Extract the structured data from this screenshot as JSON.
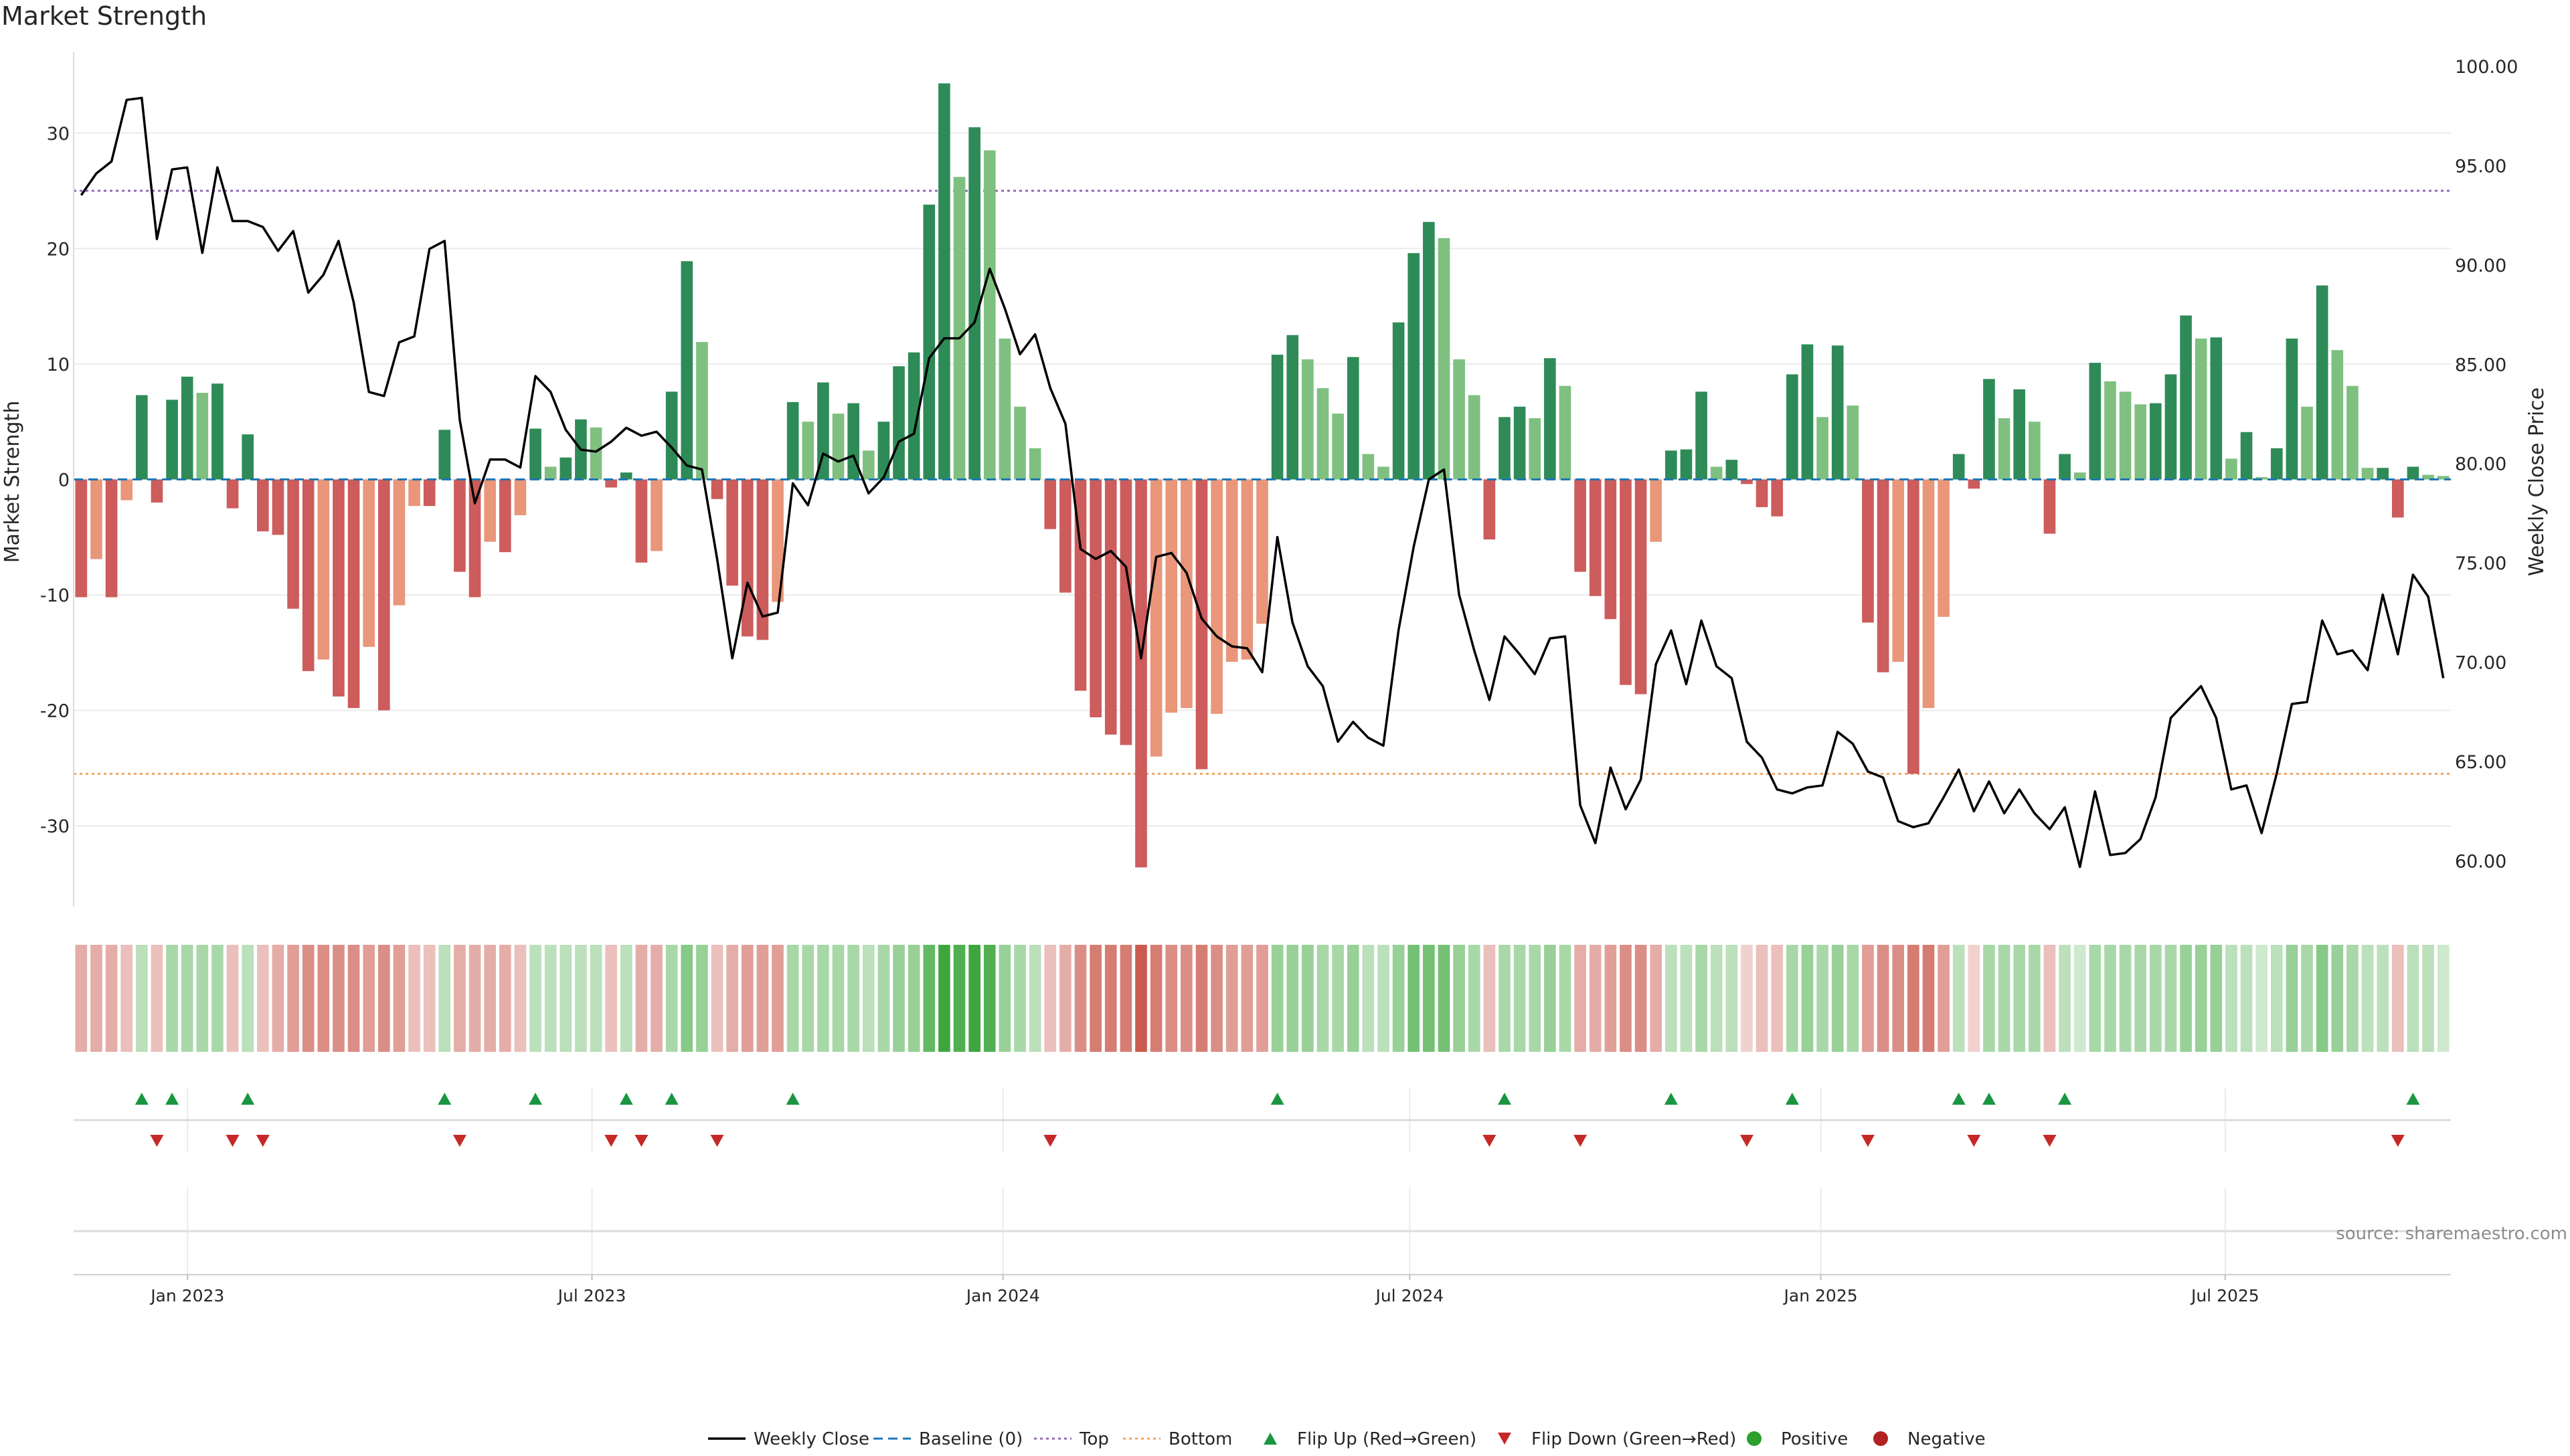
{
  "title": "Market Strength",
  "source_note": "source: sharemaestro.com",
  "colors": {
    "pos_dark": "#2e8b57",
    "pos_light": "#7fc080",
    "neg_dark": "#cd5c5c",
    "neg_light": "#e9967a",
    "price": "#000000",
    "baseline": "#1f77b4",
    "top": "#9467bd",
    "bottom": "#f4a460",
    "flip_up": "#1a9641",
    "flip_down": "#c62828",
    "positive_dot": "#2ca02c",
    "negative_dot": "#b22222"
  },
  "legend": [
    {
      "kind": "line",
      "label": "Weekly Close"
    },
    {
      "kind": "dash",
      "label": "Baseline (0)"
    },
    {
      "kind": "dot-line-top",
      "label": "Top"
    },
    {
      "kind": "dot-line-bottom",
      "label": "Bottom"
    },
    {
      "kind": "tri-up",
      "label": "Flip Up (Red→Green)"
    },
    {
      "kind": "tri-down",
      "label": "Flip Down (Green→Red)"
    },
    {
      "kind": "circle-pos",
      "label": "Positive"
    },
    {
      "kind": "circle-neg",
      "label": "Negative"
    }
  ],
  "chart_data": {
    "type": "bar",
    "title": "Market Strength",
    "ylabel": "Market Strength",
    "y2label": "Weekly Close Price",
    "ylim": [
      -37,
      37
    ],
    "y2lim": [
      57.7,
      100.7
    ],
    "yticks": [
      -30,
      -20,
      -10,
      0,
      10,
      20,
      30
    ],
    "y2ticks": [
      "60.00",
      "65.00",
      "70.00",
      "75.00",
      "80.00",
      "85.00",
      "90.00",
      "95.00",
      "100.00"
    ],
    "x_start": "2022-11-11",
    "x_end": "2025-10-10",
    "xticks": [
      {
        "date": "2023-01-01",
        "label": "Jan 2023"
      },
      {
        "date": "2023-07-01",
        "label": "Jul 2023"
      },
      {
        "date": "2024-01-01",
        "label": "Jan 2024"
      },
      {
        "date": "2024-07-01",
        "label": "Jul 2024"
      },
      {
        "date": "2025-01-01",
        "label": "Jan 2025"
      },
      {
        "date": "2025-07-01",
        "label": "Jul 2025"
      }
    ],
    "top_line": 25,
    "bottom_line": -25.5,
    "grid": true,
    "legend_position": "bottom-center",
    "strength": [
      -10.2,
      -6.9,
      -10.2,
      -1.8,
      7.3,
      -2.0,
      6.9,
      8.9,
      7.5,
      8.3,
      -2.5,
      3.9,
      -4.5,
      -4.8,
      -11.2,
      -16.6,
      -15.6,
      -18.8,
      -19.8,
      -14.5,
      -20.0,
      -10.9,
      -2.3,
      -2.3,
      4.3,
      -8.0,
      -10.2,
      -5.4,
      -6.3,
      -3.1,
      4.4,
      1.1,
      1.9,
      5.2,
      4.5,
      -0.7,
      0.6,
      -7.2,
      -6.2,
      7.6,
      18.9,
      11.9,
      -1.7,
      -9.2,
      -13.6,
      -13.9,
      -10.6,
      6.7,
      5.0,
      8.4,
      5.7,
      6.6,
      2.5,
      5.0,
      9.8,
      11.0,
      23.8,
      34.3,
      26.2,
      30.5,
      28.5,
      12.2,
      6.3,
      2.7,
      -4.3,
      -9.8,
      -18.3,
      -20.6,
      -22.1,
      -23.0,
      -33.6,
      -24.0,
      -20.2,
      -19.8,
      -25.1,
      -20.3,
      -15.8,
      -15.6,
      -12.5,
      10.8,
      12.5,
      10.4,
      7.9,
      5.7,
      10.6,
      2.2,
      1.1,
      13.6,
      19.6,
      22.3,
      20.9,
      10.4,
      7.3,
      -5.2,
      5.4,
      6.3,
      5.3,
      10.5,
      8.1,
      -8.0,
      -10.1,
      -12.1,
      -17.8,
      -18.6,
      -5.4,
      2.5,
      2.6,
      7.6,
      1.1,
      1.7,
      -0.4,
      -2.4,
      -3.2,
      9.1,
      11.7,
      5.4,
      11.6,
      6.4,
      -12.4,
      -16.7,
      -15.8,
      -25.5,
      -19.8,
      -11.9,
      2.2,
      -0.8,
      8.7,
      5.3,
      7.8,
      5.0,
      -4.7,
      2.2,
      0.6,
      10.1,
      8.5,
      7.6,
      6.5,
      6.6,
      9.1,
      14.2,
      12.2,
      12.3,
      1.8,
      4.1,
      0.2,
      2.7,
      12.2,
      6.3,
      16.8,
      11.2,
      8.1,
      1.0,
      1.0,
      -3.3,
      1.1,
      0.4,
      0.3
    ],
    "close": [
      93.5,
      94.6,
      95.2,
      98.3,
      98.4,
      91.3,
      94.8,
      94.9,
      90.6,
      94.9,
      92.2,
      92.2,
      91.9,
      90.7,
      91.7,
      88.6,
      89.5,
      91.2,
      88.1,
      83.6,
      83.4,
      86.1,
      86.4,
      90.8,
      91.2,
      82.2,
      78.0,
      80.2,
      80.2,
      79.8,
      84.4,
      83.6,
      81.7,
      80.7,
      80.6,
      81.1,
      81.8,
      81.4,
      81.6,
      80.8,
      79.9,
      79.7,
      75.2,
      70.2,
      74.0,
      72.3,
      72.5,
      79.0,
      77.9,
      80.5,
      80.1,
      80.4,
      78.5,
      79.3,
      81.1,
      81.5,
      85.3,
      86.3,
      86.3,
      87.1,
      89.8,
      87.8,
      85.5,
      86.5,
      83.8,
      82.0,
      75.7,
      75.2,
      75.6,
      74.8,
      70.2,
      75.3,
      75.5,
      74.5,
      72.2,
      71.3,
      70.8,
      70.7,
      69.5,
      76.3,
      72.0,
      69.8,
      68.8,
      66.0,
      67.0,
      66.2,
      65.8,
      71.6,
      75.8,
      79.2,
      79.7,
      73.4,
      70.6,
      68.1,
      71.3,
      70.4,
      69.4,
      71.2,
      71.3,
      62.8,
      60.9,
      64.7,
      62.6,
      64.1,
      69.9,
      71.6,
      68.9,
      72.1,
      69.8,
      69.2,
      66.0,
      65.2,
      63.6,
      63.4,
      63.7,
      63.8,
      66.5,
      65.9,
      64.5,
      64.2,
      62.0,
      61.7,
      61.9,
      63.2,
      64.6,
      62.5,
      64.0,
      62.4,
      63.6,
      62.4,
      61.6,
      62.7,
      59.7,
      63.5,
      60.3,
      60.4,
      61.1,
      63.2,
      67.2,
      68.0,
      68.8,
      67.2,
      63.6,
      63.8,
      61.4,
      64.4,
      67.9,
      68.0,
      72.1,
      70.4,
      70.6,
      69.6,
      73.4,
      70.4,
      74.4,
      73.3,
      69.2
    ]
  },
  "heatmap": [
    -0.3,
    -0.3,
    -0.3,
    -0.2,
    0.2,
    -0.2,
    0.3,
    0.3,
    0.3,
    0.3,
    -0.2,
    0.2,
    -0.2,
    -0.3,
    -0.4,
    -0.5,
    -0.5,
    -0.5,
    -0.5,
    -0.4,
    -0.5,
    -0.4,
    -0.2,
    -0.2,
    0.2,
    -0.3,
    -0.3,
    -0.3,
    -0.3,
    -0.2,
    0.2,
    0.2,
    0.2,
    0.2,
    0.2,
    -0.2,
    0.2,
    -0.3,
    -0.3,
    0.3,
    0.5,
    0.4,
    -0.2,
    -0.3,
    -0.4,
    -0.4,
    -0.4,
    0.3,
    0.3,
    0.3,
    0.3,
    0.3,
    0.2,
    0.3,
    0.4,
    0.4,
    0.7,
    0.9,
    0.8,
    0.9,
    0.8,
    0.4,
    0.3,
    0.2,
    -0.2,
    -0.3,
    -0.5,
    -0.6,
    -0.6,
    -0.6,
    -0.8,
    -0.6,
    -0.5,
    -0.5,
    -0.6,
    -0.5,
    -0.4,
    -0.4,
    -0.4,
    0.4,
    0.4,
    0.4,
    0.3,
    0.3,
    0.4,
    0.2,
    0.2,
    0.4,
    0.6,
    0.6,
    0.6,
    0.4,
    0.3,
    -0.2,
    0.3,
    0.3,
    0.3,
    0.4,
    0.3,
    -0.3,
    -0.3,
    -0.4,
    -0.5,
    -0.5,
    -0.3,
    0.2,
    0.2,
    0.3,
    0.2,
    0.2,
    -0.1,
    -0.2,
    -0.2,
    0.3,
    0.4,
    0.3,
    0.4,
    0.3,
    -0.4,
    -0.5,
    -0.5,
    -0.6,
    -0.6,
    -0.4,
    0.2,
    -0.1,
    0.3,
    0.3,
    0.3,
    0.3,
    -0.2,
    0.2,
    0.1,
    0.3,
    0.3,
    0.3,
    0.3,
    0.3,
    0.3,
    0.4,
    0.4,
    0.4,
    0.2,
    0.2,
    0.1,
    0.2,
    0.4,
    0.3,
    0.5,
    0.4,
    0.3,
    0.2,
    0.2,
    -0.2,
    0.2,
    0.2,
    0.1
  ],
  "flips_up": [
    4,
    6,
    11,
    24,
    30,
    36,
    39,
    47,
    79,
    94,
    105,
    113,
    124,
    126,
    131,
    154
  ],
  "flips_down": [
    5,
    10,
    12,
    25,
    35,
    37,
    42,
    64,
    93,
    99,
    110,
    118,
    125,
    130,
    153
  ]
}
